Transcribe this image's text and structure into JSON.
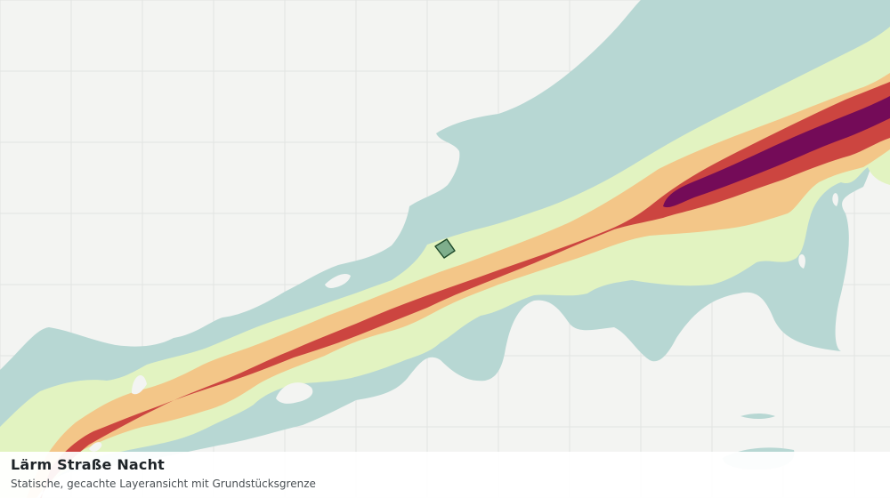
{
  "layer": {
    "title": "Lärm Straße Nacht",
    "subtitle": "Statische, gecachte Layeransicht mit Grundstücksgrenze"
  },
  "colors": {
    "background": "#f3f4f2",
    "grid": "#e2e4e2",
    "zone_low": "#b7d7d3",
    "zone_mid_low": "#e2f3c1",
    "zone_mid": "#f3c688",
    "zone_high": "#cc4540",
    "zone_very_high": "#740b58",
    "parcel_fill": "#7fae8c",
    "parcel_stroke": "#1f4a2b"
  }
}
